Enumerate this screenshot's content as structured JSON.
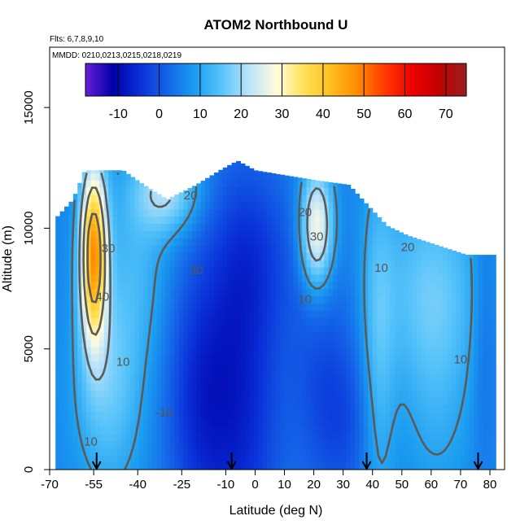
{
  "chart_data": {
    "type": "heatmap",
    "title": "ATOM2 Northbound U",
    "flights_note": "Flts: 6,7,8,9,10",
    "dates_note": "MMDD: 0210,0213,0215,0218,0219",
    "xlabel": "Latitude (deg N)",
    "ylabel": "Altitude (m)",
    "xlim": [
      -70,
      85
    ],
    "ylim": [
      0,
      17500
    ],
    "x_ticks": [
      -70,
      -55,
      -40,
      -25,
      -10,
      0,
      10,
      20,
      30,
      40,
      50,
      60,
      70,
      80
    ],
    "x_tick_labels": [
      "-70",
      "-55",
      "-40",
      "-25",
      "-10",
      "0",
      "10",
      "20",
      "30",
      "40",
      "50",
      "60",
      "70",
      "80"
    ],
    "y_ticks": [
      0,
      5000,
      10000,
      15000
    ],
    "y_tick_labels": [
      "0",
      "5000",
      "10000",
      "15000"
    ],
    "colorbar": {
      "range": [
        -18,
        75
      ],
      "ticks": [
        -10,
        0,
        10,
        20,
        30,
        40,
        50,
        60,
        70
      ],
      "tick_labels": [
        "-10",
        "0",
        "10",
        "20",
        "30",
        "40",
        "50",
        "60",
        "70"
      ],
      "colors": [
        "#6a1ed8",
        "#0000a8",
        "#0a2fd8",
        "#1464e8",
        "#1a9cf0",
        "#58c4fa",
        "#b9e2fa",
        "#fffddf",
        "#ffe25a",
        "#ffbf20",
        "#ff8c00",
        "#ff3a00",
        "#ee0000",
        "#c00000",
        "#992020"
      ]
    },
    "contour_levels": [
      -10,
      10,
      20,
      30,
      40
    ],
    "contour_labels": [
      {
        "text": "20",
        "x": -22,
        "y": 11200
      },
      {
        "text": "30",
        "x": -20,
        "y": 8100
      },
      {
        "text": "20",
        "x": 17,
        "y": 10500
      },
      {
        "text": "30",
        "x": 21,
        "y": 9500
      },
      {
        "text": "10",
        "x": 17,
        "y": 6900
      },
      {
        "text": "20",
        "x": 52,
        "y": 9050
      },
      {
        "text": "10",
        "x": 43,
        "y": 8200
      },
      {
        "text": "40",
        "x": -52,
        "y": 7000
      },
      {
        "text": "30",
        "x": -50,
        "y": 9000
      },
      {
        "text": "10",
        "x": -45,
        "y": 4300
      },
      {
        "text": "-10",
        "x": -31,
        "y": 2200
      },
      {
        "text": "10",
        "x": -56,
        "y": 1000
      },
      {
        "text": "10",
        "x": 70,
        "y": 4400
      }
    ],
    "arrow_latitudes": [
      -54,
      -8,
      38,
      76
    ]
  }
}
